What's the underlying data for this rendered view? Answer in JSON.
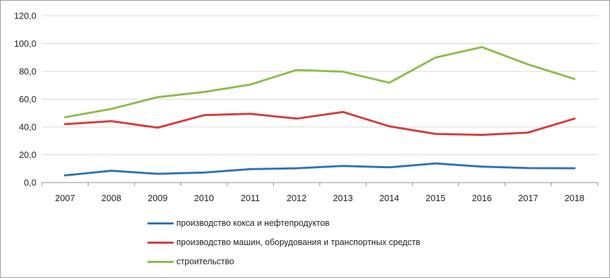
{
  "chart_data": {
    "type": "line",
    "title": "",
    "xlabel": "",
    "ylabel": "",
    "x": [
      "2007",
      "2008",
      "2009",
      "2010",
      "2011",
      "2012",
      "2013",
      "2014",
      "2015",
      "2016",
      "2017",
      "2018"
    ],
    "ylim": [
      0,
      120
    ],
    "ytick_labels": [
      "0,0",
      "20,0",
      "40,0",
      "60,0",
      "80,0",
      "100,0",
      "120,0"
    ],
    "grid": "horizontal",
    "legend_position": "bottom",
    "series": [
      {
        "name": "производство кокса и нефтепродуктов",
        "color": "#2e74b5",
        "values": [
          5.2,
          8.5,
          6.3,
          7.2,
          9.7,
          10.3,
          12.0,
          11.0,
          13.8,
          11.5,
          10.4,
          10.3
        ]
      },
      {
        "name": "производство машин, оборудования и транспортных средств",
        "color": "#d83b3b",
        "values": [
          42.0,
          44.2,
          39.5,
          48.5,
          49.5,
          46.0,
          50.8,
          40.5,
          35.0,
          34.3,
          36.0,
          46.0
        ]
      },
      {
        "name": "строительство",
        "color": "#8cbd4a",
        "values": [
          47.0,
          53.0,
          61.5,
          65.2,
          70.5,
          81.0,
          79.8,
          71.8,
          90.0,
          97.5,
          85.0,
          74.5
        ]
      }
    ]
  }
}
